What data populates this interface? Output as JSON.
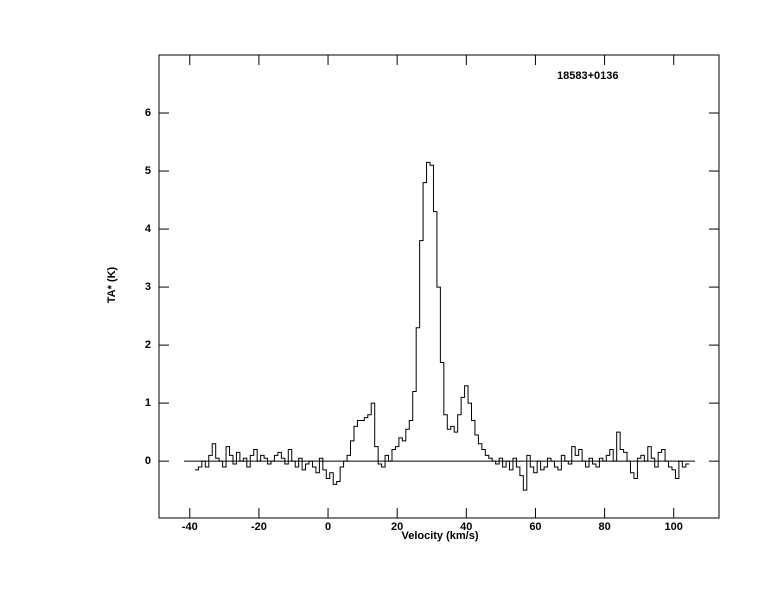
{
  "chart_data": {
    "type": "step",
    "title": "18583+0136",
    "x_label": "Velocity (km/s)",
    "y_label": "TA* (K)",
    "xlim": [
      -48.9,
      113.1
    ],
    "ylim": [
      -0.98,
      7.0
    ],
    "xticks": [
      -40,
      -20,
      0,
      20,
      40,
      60,
      80,
      100
    ],
    "yticks": [
      0,
      1,
      2,
      3,
      4,
      5,
      6
    ],
    "color": "#000000",
    "x": [
      -38,
      -37,
      -36,
      -35,
      -34,
      -33,
      -32,
      -31,
      -30,
      -29,
      -28,
      -27,
      -26,
      -25,
      -24,
      -23,
      -22,
      -21,
      -20,
      -19,
      -18,
      -17,
      -16,
      -15,
      -14,
      -13,
      -12,
      -11,
      -10,
      -9,
      -8,
      -7,
      -6,
      -5,
      -4,
      -3,
      -2,
      -1,
      0,
      1,
      2,
      3,
      4,
      5,
      6,
      7,
      8,
      9,
      10,
      11,
      12,
      13,
      14,
      15,
      16,
      17,
      18,
      19,
      20,
      21,
      22,
      23,
      24,
      25,
      26,
      27,
      28,
      29,
      30,
      31,
      32,
      33,
      34,
      35,
      36,
      37,
      38,
      39,
      40,
      41,
      42,
      43,
      44,
      45,
      46,
      47,
      48,
      49,
      50,
      51,
      52,
      53,
      54,
      55,
      56,
      57,
      58,
      59,
      60,
      61,
      62,
      63,
      64,
      65,
      66,
      67,
      68,
      69,
      70,
      71,
      72,
      73,
      74,
      75,
      76,
      77,
      78,
      79,
      80,
      81,
      82,
      83,
      84,
      85,
      86,
      87,
      88,
      89,
      90,
      91,
      92,
      93,
      94,
      95,
      96,
      97,
      98,
      99,
      100,
      101,
      102,
      103,
      104
    ],
    "values": [
      -0.15,
      -0.1,
      0.0,
      -0.1,
      0.1,
      0.3,
      0.05,
      0.0,
      -0.1,
      0.25,
      0.1,
      -0.05,
      0.15,
      0.0,
      0.05,
      -0.1,
      0.1,
      0.2,
      0.0,
      0.1,
      0.05,
      -0.05,
      0.0,
      0.1,
      0.15,
      0.05,
      -0.05,
      0.2,
      0.0,
      -0.1,
      0.05,
      -0.15,
      -0.05,
      0.0,
      -0.1,
      -0.2,
      0.05,
      -0.15,
      -0.3,
      -0.2,
      -0.4,
      -0.35,
      -0.1,
      0.0,
      0.1,
      0.35,
      0.6,
      0.7,
      0.7,
      0.75,
      0.8,
      1.0,
      0.25,
      -0.05,
      -0.1,
      0.1,
      0.0,
      0.2,
      0.25,
      0.4,
      0.35,
      0.55,
      0.7,
      1.2,
      2.3,
      3.8,
      4.8,
      5.15,
      5.1,
      4.3,
      3.0,
      1.7,
      0.8,
      0.55,
      0.6,
      0.5,
      0.8,
      1.1,
      1.3,
      1.0,
      0.7,
      0.45,
      0.3,
      0.2,
      0.1,
      0.05,
      0.0,
      -0.05,
      0.05,
      -0.1,
      0.0,
      -0.15,
      0.05,
      -0.1,
      -0.25,
      -0.5,
      0.1,
      -0.1,
      -0.2,
      0.0,
      -0.15,
      -0.1,
      0.05,
      0.0,
      -0.1,
      -0.15,
      0.1,
      0.0,
      -0.05,
      0.25,
      0.1,
      0.2,
      0.0,
      -0.1,
      0.05,
      -0.05,
      -0.1,
      0.05,
      0.0,
      0.1,
      0.2,
      0.0,
      0.5,
      0.2,
      0.15,
      0.0,
      -0.2,
      -0.3,
      0.05,
      0.1,
      0.0,
      0.25,
      0.05,
      -0.1,
      0.15,
      0.2,
      0.0,
      -0.1,
      -0.15,
      -0.3,
      0.0,
      -0.1,
      -0.05
    ]
  }
}
